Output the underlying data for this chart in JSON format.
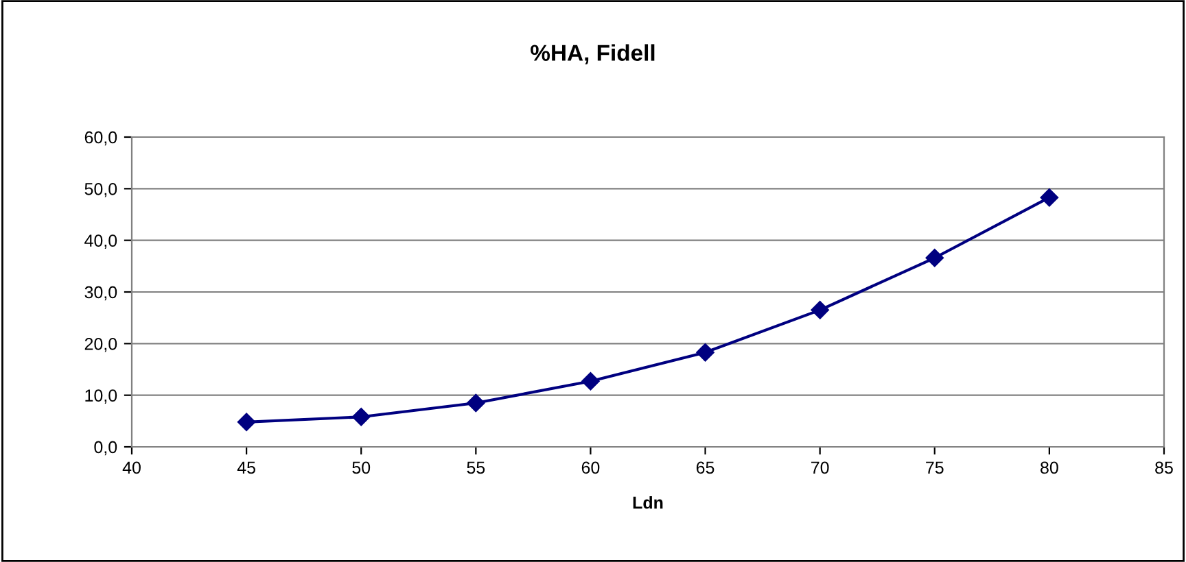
{
  "chart_data": {
    "type": "line",
    "title": "%HA, Fidell",
    "xlabel": "Ldn",
    "x": [
      45,
      50,
      55,
      60,
      65,
      70,
      75,
      80
    ],
    "series": [
      {
        "color": "#000080",
        "values": [
          4.8,
          5.8,
          8.5,
          12.7,
          18.3,
          26.5,
          36.6,
          48.3
        ]
      }
    ],
    "xlim": [
      40,
      85
    ],
    "xticks": [
      40,
      45,
      50,
      55,
      60,
      65,
      70,
      75,
      80,
      85
    ],
    "ylim": [
      0,
      60
    ],
    "yticks": [
      {
        "value": 0,
        "label": "0,0"
      },
      {
        "value": 10,
        "label": "10,0"
      },
      {
        "value": 20,
        "label": "20,0"
      },
      {
        "value": 30,
        "label": "30,0"
      },
      {
        "value": 40,
        "label": "40,0"
      },
      {
        "value": 50,
        "label": "50,0"
      },
      {
        "value": 60,
        "label": "60,0"
      }
    ],
    "grid": "y",
    "marker": "diamond",
    "line_style": "solid",
    "legend": false
  }
}
